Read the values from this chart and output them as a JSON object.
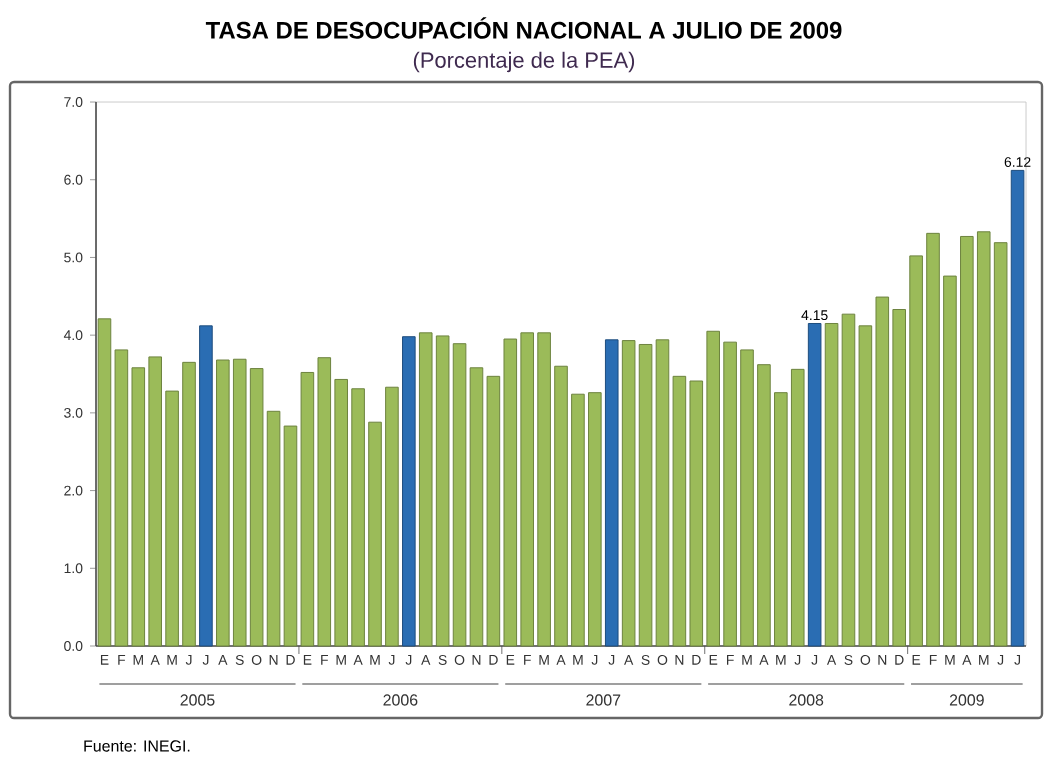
{
  "chart_data": {
    "type": "bar",
    "title": "TASA DE DESOCUPACIÓN NACIONAL A JULIO DE 2009",
    "subtitle": "(Porcentaje de la PEA)",
    "categories": [
      "E",
      "F",
      "M",
      "A",
      "M",
      "J",
      "J",
      "A",
      "S",
      "O",
      "N",
      "D",
      "E",
      "F",
      "M",
      "A",
      "M",
      "J",
      "J",
      "A",
      "S",
      "O",
      "N",
      "D",
      "E",
      "F",
      "M",
      "A",
      "M",
      "J",
      "J",
      "A",
      "S",
      "O",
      "N",
      "D",
      "E",
      "F",
      "M",
      "A",
      "M",
      "J",
      "J",
      "A",
      "S",
      "O",
      "N",
      "D",
      "E",
      "F",
      "M",
      "A",
      "M",
      "J",
      "J"
    ],
    "values": [
      4.21,
      3.81,
      3.58,
      3.72,
      3.28,
      3.65,
      4.12,
      3.68,
      3.69,
      3.57,
      3.02,
      2.83,
      3.52,
      3.71,
      3.43,
      3.31,
      2.88,
      3.33,
      3.98,
      4.03,
      3.99,
      3.89,
      3.58,
      3.47,
      3.95,
      4.03,
      4.03,
      3.6,
      3.24,
      3.26,
      3.94,
      3.93,
      3.88,
      3.94,
      3.47,
      3.41,
      4.05,
      3.91,
      3.81,
      3.62,
      3.26,
      3.56,
      4.15,
      4.15,
      4.27,
      4.12,
      4.49,
      4.33,
      5.02,
      5.31,
      4.76,
      5.27,
      5.33,
      5.19,
      6.12
    ],
    "colors": [
      "#9bbb59",
      "#9bbb59",
      "#9bbb59",
      "#9bbb59",
      "#9bbb59",
      "#9bbb59",
      "#2a6db3",
      "#9bbb59",
      "#9bbb59",
      "#9bbb59",
      "#9bbb59",
      "#9bbb59",
      "#9bbb59",
      "#9bbb59",
      "#9bbb59",
      "#9bbb59",
      "#9bbb59",
      "#9bbb59",
      "#2a6db3",
      "#9bbb59",
      "#9bbb59",
      "#9bbb59",
      "#9bbb59",
      "#9bbb59",
      "#9bbb59",
      "#9bbb59",
      "#9bbb59",
      "#9bbb59",
      "#9bbb59",
      "#9bbb59",
      "#2a6db3",
      "#9bbb59",
      "#9bbb59",
      "#9bbb59",
      "#9bbb59",
      "#9bbb59",
      "#9bbb59",
      "#9bbb59",
      "#9bbb59",
      "#9bbb59",
      "#9bbb59",
      "#9bbb59",
      "#2a6db3",
      "#9bbb59",
      "#9bbb59",
      "#9bbb59",
      "#9bbb59",
      "#9bbb59",
      "#9bbb59",
      "#9bbb59",
      "#9bbb59",
      "#9bbb59",
      "#9bbb59",
      "#9bbb59",
      "#2a6db3"
    ],
    "value_labels": [
      null,
      null,
      null,
      null,
      null,
      null,
      null,
      null,
      null,
      null,
      null,
      null,
      null,
      null,
      null,
      null,
      null,
      null,
      null,
      null,
      null,
      null,
      null,
      null,
      null,
      null,
      null,
      null,
      null,
      null,
      null,
      null,
      null,
      null,
      null,
      null,
      null,
      null,
      null,
      null,
      null,
      null,
      "4.15",
      null,
      null,
      null,
      null,
      null,
      null,
      null,
      null,
      null,
      null,
      null,
      "6.12"
    ],
    "ylim": [
      0,
      7
    ],
    "yticks": [
      {
        "value": 0,
        "label": "0.0"
      },
      {
        "value": 1,
        "label": "1.0"
      },
      {
        "value": 2,
        "label": "2.0"
      },
      {
        "value": 3,
        "label": "3.0"
      },
      {
        "value": 4,
        "label": "4.0"
      },
      {
        "value": 5,
        "label": "5.0"
      },
      {
        "value": 6,
        "label": "6.0"
      },
      {
        "value": 7,
        "label": "7.0"
      }
    ],
    "annotations": [
      "2005",
      "2006",
      "2007",
      "2008",
      "2009",
      "Fuente: INEGI."
    ]
  }
}
